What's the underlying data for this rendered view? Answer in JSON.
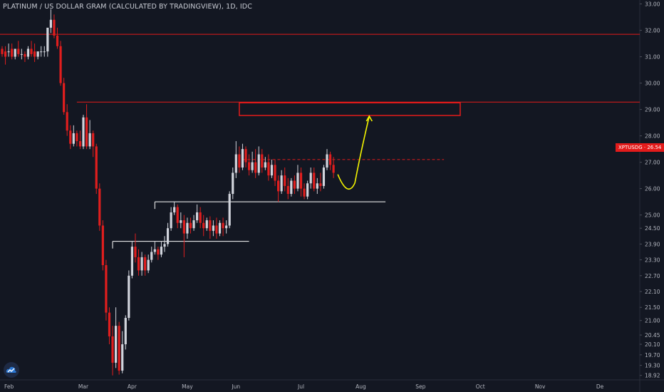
{
  "header": {
    "title": "PLATINUM / US DOLLAR GRAM (CALCULATED BY TRADINGVIEW), 1D, IDC"
  },
  "price_tag": {
    "label": "XPTUSDG · 26.54",
    "color": "#e31b1b"
  },
  "logo": {
    "icon": "tradingview-logo-icon"
  },
  "colors": {
    "background": "#131722",
    "up": "#d1d4dc",
    "down": "#e01e1e",
    "level_line": "#e31b1b",
    "support_line": "#ffffff",
    "projection": "#f5f500"
  },
  "chart_data": {
    "type": "candlestick",
    "title": "PLATINUM / US DOLLAR GRAM (CALCULATED BY TRADINGVIEW), 1D, IDC",
    "ylim": [
      18.75,
      33.15
    ],
    "y_ticks": [
      "33.00",
      "32.00",
      "31.00",
      "30.00",
      "29.00",
      "28.00",
      "27.00",
      "26.00",
      "25.00",
      "24.50",
      "23.90",
      "23.30",
      "22.70",
      "22.10",
      "21.50",
      "21.00",
      "20.45",
      "20.10",
      "19.70",
      "19.30",
      "18.92"
    ],
    "x_ticks": [
      "Feb",
      "Mar",
      "Apr",
      "May",
      "Jun",
      "Jul",
      "Aug",
      "Sep",
      "Oct",
      "Nov",
      "De"
    ],
    "last_price": 26.54,
    "candles": [
      [
        "Feb",
        31.3,
        31.4,
        31.1,
        31.0
      ],
      [
        "",
        31.2,
        31.4,
        31.0,
        30.7
      ],
      [
        "",
        31.2,
        31.5,
        31.2,
        31.0
      ],
      [
        "",
        31.3,
        31.5,
        31.0,
        30.9
      ],
      [
        "",
        31.0,
        31.2,
        31.3,
        30.9
      ],
      [
        "",
        31.3,
        31.6,
        31.1,
        31.0
      ],
      [
        "",
        31.1,
        31.3,
        31.1,
        30.9
      ],
      [
        "",
        31.1,
        31.2,
        31.0,
        30.8
      ],
      [
        "",
        31.0,
        31.4,
        31.3,
        30.9
      ],
      [
        "",
        31.3,
        31.6,
        31.1,
        31.0
      ],
      [
        "",
        31.2,
        31.5,
        31.0,
        30.8
      ],
      [
        "",
        31.0,
        31.2,
        31.2,
        30.9
      ],
      [
        "",
        31.2,
        31.4,
        31.2,
        31.0
      ],
      [
        "",
        31.2,
        31.4,
        31.2,
        31.0
      ],
      [
        "",
        31.2,
        31.5,
        32.1,
        31.0
      ],
      [
        "",
        32.1,
        32.8,
        32.4,
        31.9
      ],
      [
        "",
        32.4,
        32.6,
        31.8,
        31.7
      ],
      [
        "",
        31.8,
        32.1,
        31.4,
        31.3
      ],
      [
        "",
        31.4,
        31.6,
        30.0,
        29.9
      ],
      [
        "",
        30.0,
        30.2,
        28.9,
        28.8
      ],
      [
        "",
        28.9,
        29.2,
        28.2,
        28.0
      ],
      [
        "",
        28.2,
        28.4,
        27.7,
        27.5
      ],
      [
        "",
        27.7,
        28.4,
        28.1,
        27.6
      ],
      [
        "",
        28.1,
        28.2,
        27.8,
        27.6
      ],
      [
        "",
        27.8,
        28.2,
        27.6,
        27.5
      ],
      [
        "Mar",
        27.6,
        28.8,
        28.7,
        27.5
      ],
      [
        "",
        28.7,
        29.2,
        27.6,
        27.5
      ],
      [
        "",
        27.6,
        28.6,
        28.1,
        27.5
      ],
      [
        "",
        28.1,
        28.2,
        27.6,
        27.2
      ],
      [
        "",
        27.6,
        27.7,
        26.0,
        25.8
      ],
      [
        "",
        26.0,
        26.2,
        24.6,
        24.4
      ],
      [
        "",
        24.6,
        24.8,
        23.1,
        22.9
      ],
      [
        "",
        23.1,
        23.3,
        21.3,
        21.0
      ],
      [
        "",
        21.3,
        21.5,
        20.4,
        20.1
      ],
      [
        "",
        20.4,
        20.8,
        19.4,
        18.92
      ],
      [
        "",
        19.4,
        21.5,
        20.8,
        19.2
      ],
      [
        "",
        20.8,
        20.95,
        19.1,
        18.95
      ],
      [
        "",
        19.1,
        20.6,
        20.1,
        19.0
      ],
      [
        "",
        20.1,
        21.2,
        21.1,
        19.9
      ],
      [
        "",
        21.1,
        22.9,
        22.7,
        21.0
      ],
      [
        "Apr",
        22.7,
        24.0,
        23.8,
        22.6
      ],
      [
        "",
        23.8,
        24.3,
        23.4,
        23.2
      ],
      [
        "",
        23.4,
        23.7,
        22.9,
        22.7
      ],
      [
        "",
        22.9,
        23.6,
        23.4,
        22.7
      ],
      [
        "",
        23.4,
        23.5,
        22.9,
        22.7
      ],
      [
        "",
        22.9,
        23.5,
        23.3,
        22.8
      ],
      [
        "",
        23.3,
        23.8,
        23.6,
        23.2
      ],
      [
        "",
        23.6,
        24.0,
        23.7,
        23.5
      ],
      [
        "",
        23.7,
        23.8,
        23.5,
        23.3
      ],
      [
        "",
        23.5,
        24.0,
        23.8,
        23.4
      ],
      [
        "",
        23.8,
        24.2,
        23.9,
        23.6
      ],
      [
        "",
        23.9,
        24.7,
        24.5,
        23.8
      ],
      [
        "",
        24.5,
        25.3,
        25.1,
        24.4
      ],
      [
        "",
        25.1,
        25.5,
        25.3,
        25.0
      ],
      [
        "",
        25.3,
        25.4,
        24.7,
        24.5
      ],
      [
        "",
        24.7,
        25.1,
        24.8,
        24.5
      ],
      [
        "",
        24.8,
        25.0,
        24.3,
        23.4
      ],
      [
        "May",
        24.3,
        24.9,
        24.7,
        24.1
      ],
      [
        "",
        24.7,
        24.9,
        24.5,
        24.3
      ],
      [
        "",
        24.5,
        25.0,
        24.8,
        24.4
      ],
      [
        "",
        24.8,
        25.4,
        25.1,
        24.7
      ],
      [
        "",
        25.1,
        25.3,
        24.7,
        24.5
      ],
      [
        "",
        24.7,
        25.0,
        24.5,
        24.2
      ],
      [
        "",
        24.5,
        24.9,
        24.8,
        24.4
      ],
      [
        "",
        24.8,
        24.95,
        24.4,
        24.1
      ],
      [
        "",
        24.4,
        24.8,
        24.6,
        24.2
      ],
      [
        "",
        24.6,
        24.9,
        24.3,
        24.1
      ],
      [
        "",
        24.3,
        24.8,
        24.7,
        24.2
      ],
      [
        "",
        24.7,
        24.9,
        24.5,
        24.2
      ],
      [
        "",
        24.5,
        24.8,
        24.6,
        24.3
      ],
      [
        "",
        24.6,
        25.9,
        25.8,
        24.5
      ],
      [
        "",
        25.8,
        26.8,
        26.6,
        25.6
      ],
      [
        "Jun",
        26.6,
        27.8,
        27.3,
        26.4
      ],
      [
        "",
        27.3,
        27.6,
        26.8,
        26.6
      ],
      [
        "",
        26.8,
        27.7,
        27.5,
        26.7
      ],
      [
        "",
        27.5,
        27.6,
        27.0,
        26.8
      ],
      [
        "",
        27.0,
        27.3,
        26.7,
        26.5
      ],
      [
        "",
        26.7,
        27.4,
        27.0,
        26.6
      ],
      [
        "",
        27.0,
        27.5,
        26.6,
        26.4
      ],
      [
        "",
        26.6,
        27.6,
        27.3,
        26.5
      ],
      [
        "",
        27.3,
        27.5,
        26.8,
        26.6
      ],
      [
        "",
        26.8,
        27.2,
        27.0,
        26.7
      ],
      [
        "",
        27.0,
        27.3,
        26.5,
        26.3
      ],
      [
        "",
        26.5,
        27.1,
        26.9,
        26.4
      ],
      [
        "",
        26.9,
        27.1,
        26.3,
        26.1
      ],
      [
        "",
        26.3,
        26.5,
        25.9,
        25.5
      ],
      [
        "",
        25.9,
        26.7,
        26.5,
        25.8
      ],
      [
        "",
        26.5,
        26.8,
        26.1,
        25.9
      ],
      [
        "",
        26.1,
        26.4,
        25.8,
        25.6
      ],
      [
        "",
        25.8,
        26.4,
        26.3,
        25.7
      ],
      [
        "",
        26.3,
        26.5,
        26.0,
        25.8
      ],
      [
        "",
        26.0,
        26.9,
        26.6,
        25.9
      ],
      [
        "Jul",
        26.6,
        26.8,
        26.0,
        25.7
      ],
      [
        "",
        26.0,
        26.2,
        25.7,
        25.6
      ],
      [
        "",
        25.7,
        26.3,
        26.2,
        25.6
      ],
      [
        "",
        26.2,
        26.8,
        26.6,
        26.0
      ],
      [
        "",
        26.6,
        26.8,
        26.0,
        25.9
      ],
      [
        "",
        26.0,
        26.4,
        26.2,
        25.8
      ],
      [
        "",
        26.2,
        26.6,
        26.1,
        25.9
      ],
      [
        "",
        26.1,
        26.9,
        26.8,
        26.0
      ],
      [
        "",
        26.8,
        27.5,
        27.3,
        26.7
      ],
      [
        "",
        27.3,
        27.4,
        26.9,
        26.7
      ],
      [
        "",
        26.9,
        27.2,
        26.6,
        26.4
      ]
    ],
    "levels": [
      {
        "label": "resistance-32",
        "price": 31.85,
        "style": "solid",
        "color": "#e31b1b"
      },
      {
        "label": "resistance-29",
        "price": 29.28,
        "style": "solid",
        "color": "#e31b1b"
      },
      {
        "label": "range-top-dashed",
        "price": 27.1,
        "style": "dashed",
        "color": "#e31b1b"
      }
    ],
    "supports": [
      {
        "label": "support-25.5",
        "price": 25.5,
        "from": "Apr",
        "color": "#ffffff"
      },
      {
        "label": "support-24",
        "price": 24.0,
        "from": "Apr",
        "color": "#ffffff"
      }
    ],
    "target_zone": {
      "price_top": 29.28,
      "price_bottom": 28.8,
      "color": "#e31b1b"
    },
    "projection": {
      "type": "curved-arrow",
      "from_price": 26.54,
      "to_price": 28.8,
      "color": "#f5f500"
    },
    "grid": false,
    "legend": "none"
  }
}
